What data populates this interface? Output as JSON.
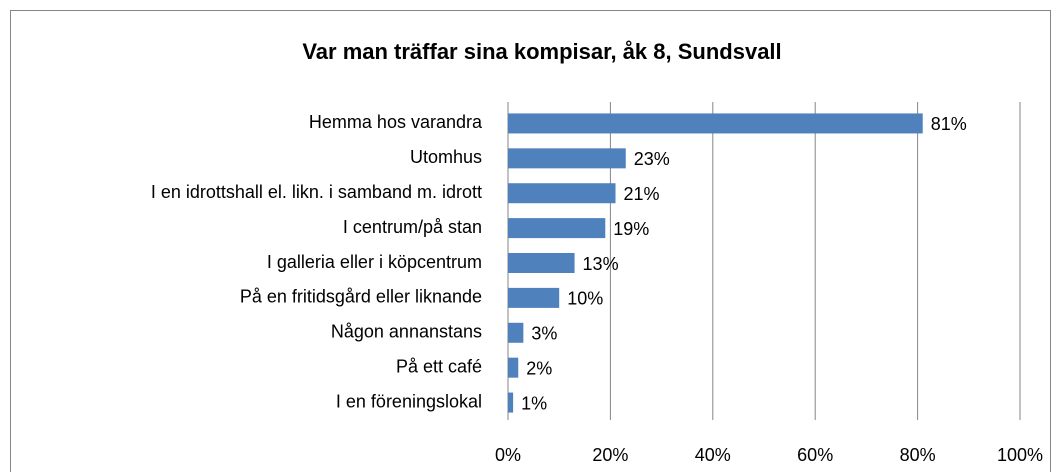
{
  "chart_data": {
    "type": "bar",
    "orientation": "horizontal",
    "title": "Var man träffar sina kompisar, åk 8, Sundsvall",
    "categories": [
      "Hemma hos varandra",
      "Utomhus",
      "I en idrottshall el. likn. i samband m. idrott",
      "I centrum/på stan",
      "I galleria eller i köpcentrum",
      "På en fritidsgård eller liknande",
      "Någon annanstans",
      "På ett café",
      "I en föreningslokal"
    ],
    "values": [
      81,
      23,
      21,
      19,
      13,
      10,
      3,
      2,
      1
    ],
    "value_labels": [
      "81%",
      "23%",
      "21%",
      "19%",
      "13%",
      "10%",
      "3%",
      "2%",
      "1%"
    ],
    "color": "#4f81bd",
    "xlim": [
      0,
      100
    ],
    "xticks": [
      {
        "value": 0,
        "label": "0%"
      },
      {
        "value": 20,
        "label": "20%"
      },
      {
        "value": 40,
        "label": "40%"
      },
      {
        "value": 60,
        "label": "60%"
      },
      {
        "value": 80,
        "label": "80%"
      },
      {
        "value": 100,
        "label": "100%"
      }
    ],
    "grid": true
  }
}
